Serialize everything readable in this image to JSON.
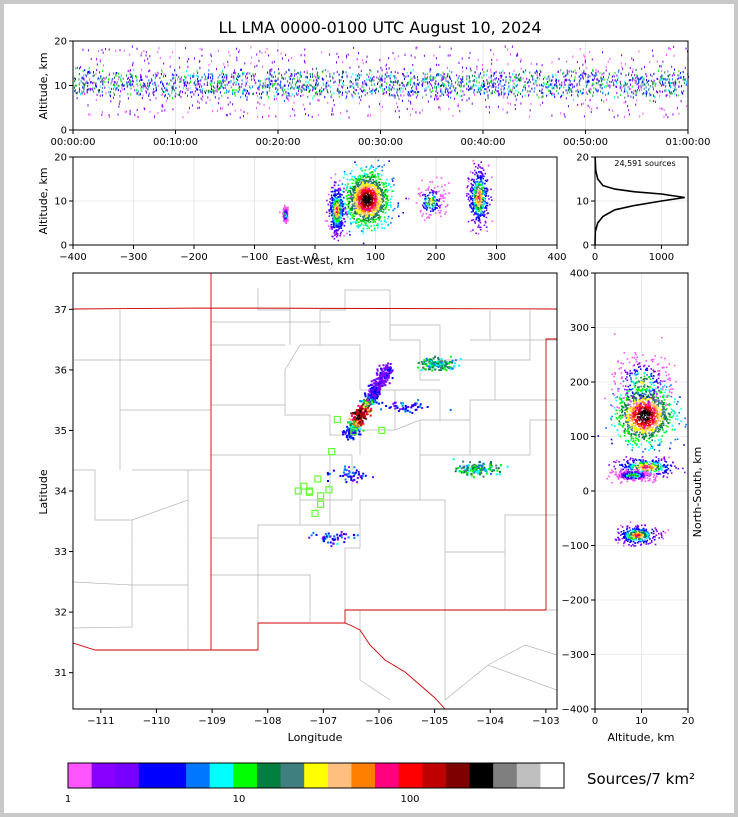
{
  "title": "LL LMA 0000-0100 UTC August 10, 2024",
  "colors": {
    "background": "#ffffff",
    "frame": "#c8c8c8",
    "state_border": "#cc0000",
    "county_border": "#b4b4b4",
    "grid": "#dcdcdc",
    "station_marker": "#66ff33"
  },
  "chart_data": [
    {
      "id": "altitude-time",
      "type": "scatter",
      "ylabel": "Altitude, km",
      "ylim": [
        0,
        20
      ],
      "yticks": [
        "0",
        "10",
        "20"
      ],
      "xticks": [
        "00:00:00",
        "00:10:00",
        "00:20:00",
        "00:30:00",
        "00:40:00",
        "00:50:00",
        "01:00:00"
      ],
      "x_range_minutes": [
        0,
        60
      ],
      "core_altitude_km": [
        8,
        13
      ],
      "outer_altitude_km": [
        3,
        19
      ]
    },
    {
      "id": "altitude-eastwest",
      "type": "scatter",
      "xlabel": "East-West, km",
      "ylabel": "Altitude, km",
      "xlim": [
        -400,
        400
      ],
      "ylim": [
        0,
        20
      ],
      "xticks": [
        "−400",
        "−300",
        "−200",
        "−100",
        "0",
        "100",
        "200",
        "300",
        "400"
      ],
      "yticks": [
        "0",
        "10",
        "20"
      ],
      "clusters": [
        {
          "x": 85,
          "z": 10.5,
          "sx": 18,
          "sz": 3,
          "intensity": "high"
        },
        {
          "x": 35,
          "z": 8,
          "sx": 6,
          "sz": 2.5,
          "intensity": "medium"
        },
        {
          "x": 190,
          "z": 10,
          "sx": 12,
          "sz": 2,
          "intensity": "low"
        },
        {
          "x": 270,
          "z": 11,
          "sx": 8,
          "sz": 3,
          "intensity": "medium"
        },
        {
          "x": -50,
          "z": 7,
          "sx": 2,
          "sz": 0.8,
          "intensity": "low"
        }
      ]
    },
    {
      "id": "altitude-histogram",
      "type": "line",
      "annotation": "24,591 sources",
      "xlim": [
        0,
        1400
      ],
      "ylim": [
        0,
        20
      ],
      "xticks": [
        "0",
        "1000"
      ],
      "yticks": [
        "0",
        "10",
        "20"
      ],
      "points": [
        [
          0,
          0
        ],
        [
          5,
          3
        ],
        [
          40,
          5
        ],
        [
          120,
          6.5
        ],
        [
          300,
          8
        ],
        [
          600,
          9
        ],
        [
          1000,
          10
        ],
        [
          1350,
          10.8
        ],
        [
          1000,
          11.6
        ],
        [
          600,
          12.1
        ],
        [
          300,
          12.7
        ],
        [
          120,
          13.5
        ],
        [
          40,
          15
        ],
        [
          10,
          17
        ],
        [
          2,
          20
        ]
      ]
    },
    {
      "id": "plan-view",
      "type": "scatter",
      "xlabel": "Longitude",
      "ylabel": "Latitude",
      "xlim": [
        -111.5,
        -102.8
      ],
      "ylim": [
        30.4,
        37.6
      ],
      "xticks": [
        "−111",
        "−110",
        "−109",
        "−108",
        "−107",
        "−106",
        "−105",
        "−104",
        "−103"
      ],
      "yticks": [
        "31",
        "32",
        "33",
        "34",
        "35",
        "36",
        "37"
      ],
      "line_cluster": {
        "from": [
          -106.55,
          34.95
        ],
        "to": [
          -105.85,
          36.05
        ],
        "intensity": "high"
      },
      "clusters": [
        {
          "lon": -104.95,
          "lat": 36.1,
          "intensity": "medium"
        },
        {
          "lon": -104.25,
          "lat": 34.38,
          "intensity": "medium"
        },
        {
          "lon": -106.5,
          "lat": 34.28,
          "intensity": "low"
        },
        {
          "lon": -106.85,
          "lat": 33.25,
          "intensity": "low"
        },
        {
          "lon": -105.5,
          "lat": 35.4,
          "intensity": "low"
        }
      ],
      "stations": [
        [
          -106.75,
          35.18
        ],
        [
          -106.45,
          34.98
        ],
        [
          -105.95,
          35.0
        ],
        [
          -106.85,
          34.65
        ],
        [
          -107.35,
          34.08
        ],
        [
          -107.45,
          34.0
        ],
        [
          -107.25,
          33.98
        ],
        [
          -107.1,
          34.2
        ],
        [
          -107.05,
          33.92
        ],
        [
          -106.9,
          34.02
        ],
        [
          -107.05,
          33.78
        ],
        [
          -107.15,
          33.63
        ],
        [
          -107.25,
          34.0
        ]
      ]
    },
    {
      "id": "altitude-northsouth",
      "type": "scatter",
      "xlabel": "Altitude, km",
      "ylabel": "North-South, km",
      "xlim": [
        0,
        20
      ],
      "ylim": [
        -400,
        400
      ],
      "xticks": [
        "0",
        "10",
        "20"
      ],
      "yticks": [
        "−400",
        "−300",
        "−200",
        "−100",
        "0",
        "100",
        "200",
        "300",
        "400"
      ],
      "clusters": [
        {
          "z": 10.5,
          "y": 140,
          "sz": 3,
          "sy": 25,
          "intensity": "high"
        },
        {
          "z": 10,
          "y": 200,
          "sz": 3,
          "sy": 25,
          "intensity": "low"
        },
        {
          "z": 11,
          "y": 45,
          "sz": 3,
          "sy": 8,
          "intensity": "medium"
        },
        {
          "z": 9,
          "y": -80,
          "sz": 2,
          "sy": 8,
          "intensity": "medium"
        },
        {
          "z": 8,
          "y": 30,
          "sz": 2,
          "sy": 5,
          "intensity": "low"
        }
      ]
    }
  ],
  "colorbar": {
    "label": "Sources/7 km²",
    "ticks": [
      "1",
      "10",
      "100"
    ],
    "colors": [
      "#ff55ff",
      "#8800ff",
      "#7700ff",
      "#0000ff",
      "#0000ff",
      "#0077ff",
      "#00ffff",
      "#00ff00",
      "#007f3f",
      "#3f7f7f",
      "#ffff00",
      "#ffbf7f",
      "#ff7f00",
      "#ff007f",
      "#ff0000",
      "#bf0000",
      "#7f0000",
      "#000000",
      "#7f7f7f",
      "#bfbfbf",
      "#ffffff"
    ]
  }
}
